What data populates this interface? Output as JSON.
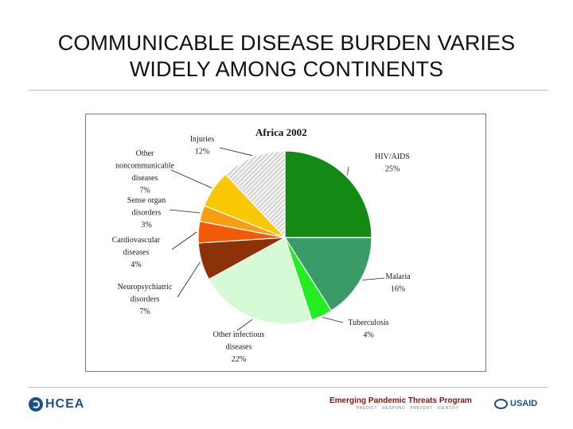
{
  "slide": {
    "title_line1": "COMMUNICABLE DISEASE BURDEN VARIES",
    "title_line2": "WIDELY AMONG CONTINENTS"
  },
  "chart_data": {
    "type": "pie",
    "title": "Africa 2002",
    "slices": [
      {
        "label": "HIV/AIDS",
        "value": 25,
        "value_label": "25%",
        "color": "#138a13",
        "pattern": "none"
      },
      {
        "label": "Malaria",
        "value": 16,
        "value_label": "16%",
        "color": "#3a9b68",
        "pattern": "none"
      },
      {
        "label": "Tuberculosis",
        "value": 4,
        "value_label": "4%",
        "color": "#22ee22",
        "pattern": "none"
      },
      {
        "label": "Other infectious diseases",
        "value": 22,
        "value_label": "22%",
        "color": "#d6fad6",
        "pattern": "none"
      },
      {
        "label": "Neuropsychiatric disorders",
        "value": 7,
        "value_label": "7%",
        "color": "#8b3208",
        "pattern": "none"
      },
      {
        "label": "Cardiovascular diseases",
        "value": 4,
        "value_label": "4%",
        "color": "#f25a0a",
        "pattern": "none"
      },
      {
        "label": "Sense organ disorders",
        "value": 3,
        "value_label": "3%",
        "color": "#f79e12",
        "pattern": "none"
      },
      {
        "label": "Other noncommunicable diseases",
        "value": 7,
        "value_label": "7%",
        "color": "#f9c804",
        "pattern": "none"
      },
      {
        "label": "Injuries",
        "value": 12,
        "value_label": "12%",
        "color": "#e4e4e4",
        "pattern": "diagonal-hatch"
      }
    ],
    "legend": "none",
    "label_placement": "outside with leader lines"
  },
  "footer": {
    "left_logo_text": "HCEA",
    "program_name": "Emerging Pandemic Threats Program",
    "program_tagline": "PREDICT · RESPOND · PREVENT · IDENTIFY",
    "right_logo_text": "USAID"
  },
  "colors": {
    "rule": "#c9c2ad",
    "program_red": "#7a1414",
    "logo_blue": "#1c4f86"
  }
}
